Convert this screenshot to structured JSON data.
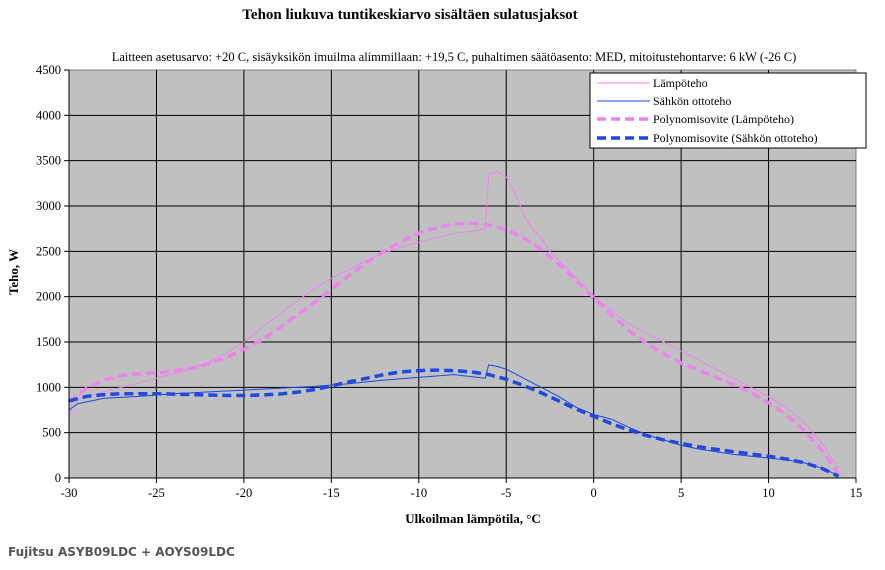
{
  "chart_data": {
    "type": "line",
    "title": "Tehon liukuva tuntikeskiarvo sisältäen sulatusjaksot",
    "subtitle": "Laitteen asetusarvo: +20  C,  sisäyksikön imuilma alimmillaan: +19,5  C, puhaltimen säätöasento: MED, mitoitustehontarve: 6 kW (-26  C)",
    "xlabel": "Ulkoilman lämpötila, °C",
    "ylabel": "Teho, W",
    "xlim": [
      -30,
      15
    ],
    "ylim": [
      0,
      4500
    ],
    "x_ticks": [
      "-30",
      "-25",
      "-20",
      "-15",
      "-10",
      "-5",
      "0",
      "5",
      "10",
      "15"
    ],
    "y_ticks": [
      "0",
      "500",
      "1000",
      "1500",
      "2000",
      "2500",
      "3000",
      "3500",
      "4000",
      "4500"
    ],
    "grid": true,
    "legend_position": "top-right",
    "series": [
      {
        "name": "Lämpöteho",
        "color": "#ee82ee",
        "style": "thin",
        "points": [
          [
            -30,
            650
          ],
          [
            -29.8,
            850
          ],
          [
            -29,
            900
          ],
          [
            -28,
            950
          ],
          [
            -27,
            1000
          ],
          [
            -26,
            1050
          ],
          [
            -25,
            1100
          ],
          [
            -24,
            1150
          ],
          [
            -23,
            1200
          ],
          [
            -22,
            1280
          ],
          [
            -21,
            1380
          ],
          [
            -20,
            1500
          ],
          [
            -19,
            1650
          ],
          [
            -18,
            1800
          ],
          [
            -17,
            1950
          ],
          [
            -16,
            2080
          ],
          [
            -15,
            2200
          ],
          [
            -14,
            2300
          ],
          [
            -13,
            2400
          ],
          [
            -12,
            2480
          ],
          [
            -11,
            2550
          ],
          [
            -10,
            2600
          ],
          [
            -9,
            2650
          ],
          [
            -8,
            2700
          ],
          [
            -7,
            2720
          ],
          [
            -6.2,
            2750
          ],
          [
            -6,
            3350
          ],
          [
            -5.5,
            3380
          ],
          [
            -5,
            3320
          ],
          [
            -4.5,
            3150
          ],
          [
            -4,
            2900
          ],
          [
            -3.5,
            2750
          ],
          [
            -3,
            2650
          ],
          [
            -2.5,
            2500
          ],
          [
            -2,
            2400
          ],
          [
            -1,
            2200
          ],
          [
            0,
            2000
          ],
          [
            1,
            1850
          ],
          [
            2,
            1700
          ],
          [
            3,
            1600
          ],
          [
            4,
            1500
          ],
          [
            5,
            1400
          ],
          [
            6,
            1300
          ],
          [
            7,
            1200
          ],
          [
            8,
            1100
          ],
          [
            9,
            1000
          ],
          [
            10,
            900
          ],
          [
            11,
            780
          ],
          [
            12,
            620
          ],
          [
            13,
            400
          ],
          [
            14,
            100
          ]
        ]
      },
      {
        "name": "Sähkön ottoteho",
        "color": "#1f49e0",
        "style": "thin",
        "points": [
          [
            -30,
            750
          ],
          [
            -29.5,
            820
          ],
          [
            -28,
            880
          ],
          [
            -26,
            900
          ],
          [
            -24,
            930
          ],
          [
            -22,
            950
          ],
          [
            -20,
            970
          ],
          [
            -18,
            990
          ],
          [
            -16,
            1010
          ],
          [
            -14,
            1040
          ],
          [
            -12,
            1080
          ],
          [
            -10,
            1110
          ],
          [
            -8,
            1140
          ],
          [
            -6.2,
            1100
          ],
          [
            -6,
            1250
          ],
          [
            -5.5,
            1230
          ],
          [
            -5,
            1200
          ],
          [
            -4.5,
            1150
          ],
          [
            -4,
            1100
          ],
          [
            -3,
            1000
          ],
          [
            -2,
            900
          ],
          [
            -1,
            780
          ],
          [
            0,
            700
          ],
          [
            1,
            650
          ],
          [
            2,
            560
          ],
          [
            3,
            480
          ],
          [
            4,
            420
          ],
          [
            5,
            360
          ],
          [
            6,
            320
          ],
          [
            7,
            290
          ],
          [
            8,
            260
          ],
          [
            9,
            240
          ],
          [
            10,
            220
          ],
          [
            11,
            200
          ],
          [
            12,
            170
          ],
          [
            13,
            110
          ],
          [
            14,
            30
          ]
        ]
      },
      {
        "name": "Polynomisovite (Lämpöteho)",
        "color": "#ee82ee",
        "style": "dashed",
        "points": [
          [
            -30,
            840
          ],
          [
            -29,
            990
          ],
          [
            -28,
            1080
          ],
          [
            -27,
            1130
          ],
          [
            -26,
            1150
          ],
          [
            -25,
            1160
          ],
          [
            -24,
            1180
          ],
          [
            -23,
            1210
          ],
          [
            -22,
            1260
          ],
          [
            -21,
            1330
          ],
          [
            -20,
            1420
          ],
          [
            -19,
            1520
          ],
          [
            -18,
            1650
          ],
          [
            -17,
            1790
          ],
          [
            -16,
            1930
          ],
          [
            -15,
            2080
          ],
          [
            -14,
            2230
          ],
          [
            -13,
            2370
          ],
          [
            -12,
            2500
          ],
          [
            -11,
            2610
          ],
          [
            -10,
            2700
          ],
          [
            -9,
            2760
          ],
          [
            -8,
            2800
          ],
          [
            -7,
            2810
          ],
          [
            -6,
            2790
          ],
          [
            -5,
            2740
          ],
          [
            -4,
            2650
          ],
          [
            -3,
            2520
          ],
          [
            -2,
            2360
          ],
          [
            -1,
            2180
          ],
          [
            0,
            1990
          ],
          [
            1,
            1800
          ],
          [
            2,
            1630
          ],
          [
            3,
            1490
          ],
          [
            4,
            1370
          ],
          [
            5,
            1270
          ],
          [
            6,
            1190
          ],
          [
            7,
            1110
          ],
          [
            8,
            1030
          ],
          [
            9,
            940
          ],
          [
            10,
            830
          ],
          [
            11,
            700
          ],
          [
            12,
            530
          ],
          [
            13,
            320
          ],
          [
            14,
            50
          ]
        ]
      },
      {
        "name": "Polynomisovite (Sähkön ottoteho)",
        "color": "#1f49e0",
        "style": "dashed",
        "points": [
          [
            -30,
            850
          ],
          [
            -29,
            900
          ],
          [
            -28,
            920
          ],
          [
            -27,
            930
          ],
          [
            -26,
            930
          ],
          [
            -25,
            930
          ],
          [
            -24,
            925
          ],
          [
            -23,
            920
          ],
          [
            -22,
            915
          ],
          [
            -21,
            910
          ],
          [
            -20,
            910
          ],
          [
            -19,
            915
          ],
          [
            -18,
            925
          ],
          [
            -17,
            945
          ],
          [
            -16,
            975
          ],
          [
            -15,
            1015
          ],
          [
            -14,
            1060
          ],
          [
            -13,
            1100
          ],
          [
            -12,
            1140
          ],
          [
            -11,
            1170
          ],
          [
            -10,
            1185
          ],
          [
            -9,
            1190
          ],
          [
            -8,
            1185
          ],
          [
            -7,
            1170
          ],
          [
            -6,
            1140
          ],
          [
            -5,
            1090
          ],
          [
            -4,
            1020
          ],
          [
            -3,
            940
          ],
          [
            -2,
            850
          ],
          [
            -1,
            760
          ],
          [
            0,
            680
          ],
          [
            1,
            600
          ],
          [
            2,
            530
          ],
          [
            3,
            470
          ],
          [
            4,
            420
          ],
          [
            5,
            380
          ],
          [
            6,
            345
          ],
          [
            7,
            315
          ],
          [
            8,
            290
          ],
          [
            9,
            265
          ],
          [
            10,
            240
          ],
          [
            11,
            210
          ],
          [
            12,
            170
          ],
          [
            13,
            110
          ],
          [
            14,
            20
          ]
        ]
      }
    ]
  },
  "footer": "Fujitsu ASYB09LDC + AOYS09LDC"
}
